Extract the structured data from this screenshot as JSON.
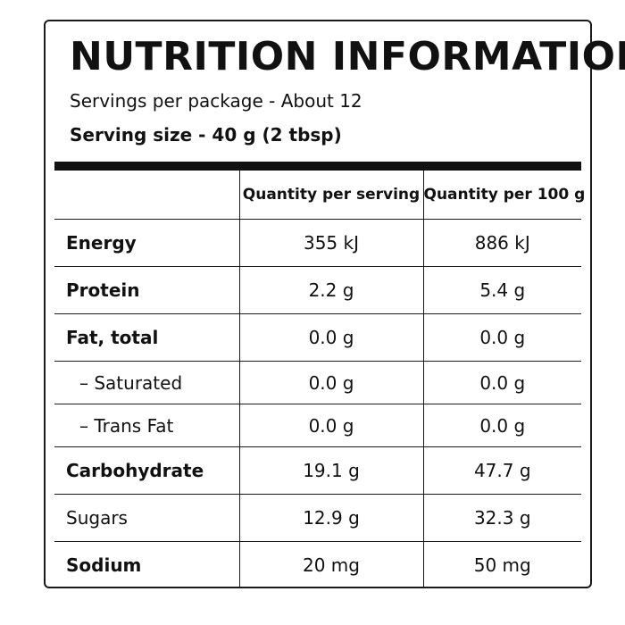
{
  "panel": {
    "title": "NUTRITION INFORMATION",
    "servings_per_package": "Servings per package - About 12",
    "serving_size": "Serving size - 40 g (2 tbsp)"
  },
  "table": {
    "headers": [
      "",
      "Quantity per serving",
      "Quantity per 100 g"
    ],
    "rows": [
      {
        "name": "Energy",
        "per_serving": "355 kJ",
        "per_100g": "886 kJ",
        "bold": true,
        "sub": false
      },
      {
        "name": "Protein",
        "per_serving": "2.2 g",
        "per_100g": "5.4 g",
        "bold": true,
        "sub": false
      },
      {
        "name": "Fat, total",
        "per_serving": "0.0 g",
        "per_100g": "0.0 g",
        "bold": true,
        "sub": false
      },
      {
        "name": "– Saturated",
        "per_serving": "0.0 g",
        "per_100g": "0.0 g",
        "bold": false,
        "sub": true
      },
      {
        "name": "– Trans Fat",
        "per_serving": "0.0 g",
        "per_100g": "0.0 g",
        "bold": false,
        "sub": true
      },
      {
        "name": "Carbohydrate",
        "per_serving": "19.1 g",
        "per_100g": "47.7 g",
        "bold": true,
        "sub": false
      },
      {
        "name": "Sugars",
        "per_serving": "12.9 g",
        "per_100g": "32.3 g",
        "bold": false,
        "sub": false
      },
      {
        "name": "Sodium",
        "per_serving": "20 mg",
        "per_100g": "50 mg",
        "bold": true,
        "sub": false
      }
    ]
  }
}
